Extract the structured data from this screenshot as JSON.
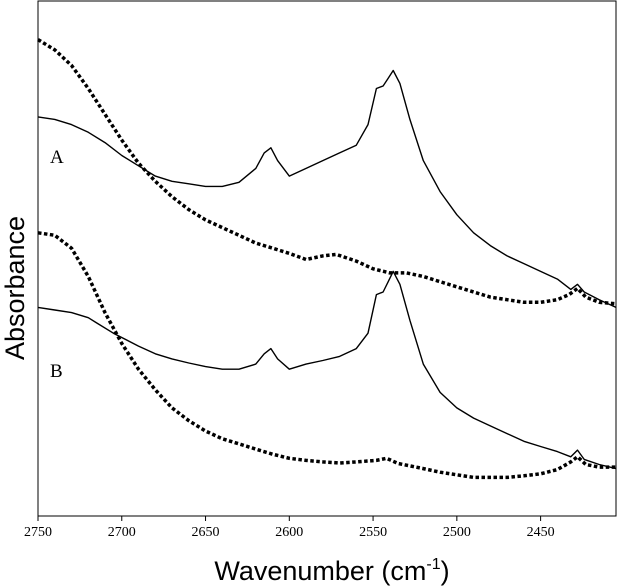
{
  "chart_data": {
    "type": "line",
    "title": "",
    "xlabel": "Wavenumber (cm",
    "xlabel_sup": "-1",
    "xlabel_close": ")",
    "ylabel": "Absorbance",
    "xlim": [
      2750,
      2405
    ],
    "x_reversed": true,
    "xticks": [
      2750,
      2700,
      2650,
      2600,
      2550,
      2500,
      2450
    ],
    "ylim": [
      0,
      10
    ],
    "yticks_shown": false,
    "grid": false,
    "legend": "none",
    "panels": [
      {
        "label": "A",
        "series": [
          {
            "style": "solid",
            "points": [
              [
                2750,
                7.75
              ],
              [
                2740,
                7.7
              ],
              [
                2730,
                7.6
              ],
              [
                2720,
                7.45
              ],
              [
                2710,
                7.25
              ],
              [
                2700,
                7.0
              ],
              [
                2690,
                6.8
              ],
              [
                2680,
                6.6
              ],
              [
                2670,
                6.5
              ],
              [
                2660,
                6.45
              ],
              [
                2650,
                6.4
              ],
              [
                2640,
                6.4
              ],
              [
                2630,
                6.48
              ],
              [
                2620,
                6.75
              ],
              [
                2615,
                7.05
              ],
              [
                2611,
                7.15
              ],
              [
                2607,
                6.9
              ],
              [
                2600,
                6.6
              ],
              [
                2590,
                6.75
              ],
              [
                2580,
                6.9
              ],
              [
                2570,
                7.05
              ],
              [
                2560,
                7.2
              ],
              [
                2553,
                7.6
              ],
              [
                2548,
                8.3
              ],
              [
                2544,
                8.35
              ],
              [
                2541,
                8.5
              ],
              [
                2538,
                8.65
              ],
              [
                2534,
                8.4
              ],
              [
                2528,
                7.7
              ],
              [
                2520,
                6.9
              ],
              [
                2510,
                6.3
              ],
              [
                2500,
                5.85
              ],
              [
                2490,
                5.5
              ],
              [
                2480,
                5.25
              ],
              [
                2470,
                5.05
              ],
              [
                2460,
                4.9
              ],
              [
                2450,
                4.75
              ],
              [
                2440,
                4.6
              ],
              [
                2432,
                4.4
              ],
              [
                2428,
                4.5
              ],
              [
                2424,
                4.35
              ],
              [
                2415,
                4.2
              ],
              [
                2405,
                4.05
              ]
            ]
          },
          {
            "style": "dotted",
            "points": [
              [
                2750,
                9.25
              ],
              [
                2740,
                9.05
              ],
              [
                2730,
                8.75
              ],
              [
                2720,
                8.3
              ],
              [
                2710,
                7.8
              ],
              [
                2700,
                7.3
              ],
              [
                2690,
                6.85
              ],
              [
                2680,
                6.5
              ],
              [
                2670,
                6.2
              ],
              [
                2660,
                5.95
              ],
              [
                2650,
                5.75
              ],
              [
                2640,
                5.6
              ],
              [
                2630,
                5.45
              ],
              [
                2620,
                5.3
              ],
              [
                2610,
                5.2
              ],
              [
                2600,
                5.1
              ],
              [
                2590,
                4.98
              ],
              [
                2580,
                5.05
              ],
              [
                2572,
                5.08
              ],
              [
                2560,
                4.95
              ],
              [
                2550,
                4.8
              ],
              [
                2540,
                4.72
              ],
              [
                2530,
                4.72
              ],
              [
                2520,
                4.65
              ],
              [
                2510,
                4.55
              ],
              [
                2500,
                4.45
              ],
              [
                2490,
                4.35
              ],
              [
                2480,
                4.25
              ],
              [
                2470,
                4.2
              ],
              [
                2460,
                4.15
              ],
              [
                2450,
                4.15
              ],
              [
                2440,
                4.2
              ],
              [
                2433,
                4.3
              ],
              [
                2428,
                4.42
              ],
              [
                2423,
                4.25
              ],
              [
                2415,
                4.15
              ],
              [
                2405,
                4.12
              ]
            ]
          }
        ]
      },
      {
        "label": "B",
        "series": [
          {
            "style": "solid",
            "points": [
              [
                2750,
                4.05
              ],
              [
                2740,
                4.0
              ],
              [
                2730,
                3.95
              ],
              [
                2720,
                3.85
              ],
              [
                2715,
                3.75
              ],
              [
                2705,
                3.55
              ],
              [
                2690,
                3.3
              ],
              [
                2680,
                3.15
              ],
              [
                2670,
                3.05
              ],
              [
                2660,
                2.97
              ],
              [
                2650,
                2.9
              ],
              [
                2640,
                2.85
              ],
              [
                2630,
                2.85
              ],
              [
                2620,
                2.95
              ],
              [
                2615,
                3.15
              ],
              [
                2611,
                3.25
              ],
              [
                2607,
                3.05
              ],
              [
                2600,
                2.85
              ],
              [
                2590,
                2.95
              ],
              [
                2580,
                3.02
              ],
              [
                2570,
                3.1
              ],
              [
                2560,
                3.25
              ],
              [
                2553,
                3.55
              ],
              [
                2548,
                4.3
              ],
              [
                2544,
                4.35
              ],
              [
                2541,
                4.55
              ],
              [
                2538,
                4.75
              ],
              [
                2534,
                4.5
              ],
              [
                2528,
                3.8
              ],
              [
                2520,
                2.95
              ],
              [
                2510,
                2.4
              ],
              [
                2500,
                2.1
              ],
              [
                2490,
                1.9
              ],
              [
                2480,
                1.75
              ],
              [
                2470,
                1.6
              ],
              [
                2460,
                1.45
              ],
              [
                2450,
                1.35
              ],
              [
                2440,
                1.25
              ],
              [
                2432,
                1.15
              ],
              [
                2428,
                1.28
              ],
              [
                2424,
                1.1
              ],
              [
                2415,
                1.0
              ],
              [
                2405,
                0.92
              ]
            ]
          },
          {
            "style": "dotted",
            "points": [
              [
                2750,
                5.5
              ],
              [
                2740,
                5.45
              ],
              [
                2730,
                5.2
              ],
              [
                2720,
                4.65
              ],
              [
                2710,
                3.95
              ],
              [
                2700,
                3.35
              ],
              [
                2690,
                2.85
              ],
              [
                2680,
                2.45
              ],
              [
                2670,
                2.1
              ],
              [
                2660,
                1.85
              ],
              [
                2650,
                1.65
              ],
              [
                2640,
                1.5
              ],
              [
                2630,
                1.4
              ],
              [
                2620,
                1.3
              ],
              [
                2610,
                1.2
              ],
              [
                2600,
                1.12
              ],
              [
                2590,
                1.08
              ],
              [
                2580,
                1.05
              ],
              [
                2570,
                1.03
              ],
              [
                2560,
                1.05
              ],
              [
                2548,
                1.08
              ],
              [
                2542,
                1.12
              ],
              [
                2535,
                1.02
              ],
              [
                2520,
                0.92
              ],
              [
                2510,
                0.85
              ],
              [
                2500,
                0.8
              ],
              [
                2490,
                0.75
              ],
              [
                2480,
                0.75
              ],
              [
                2470,
                0.75
              ],
              [
                2460,
                0.78
              ],
              [
                2450,
                0.82
              ],
              [
                2440,
                0.9
              ],
              [
                2432,
                1.05
              ],
              [
                2428,
                1.15
              ],
              [
                2423,
                1.0
              ],
              [
                2415,
                0.95
              ],
              [
                2405,
                0.95
              ]
            ]
          }
        ]
      }
    ]
  }
}
